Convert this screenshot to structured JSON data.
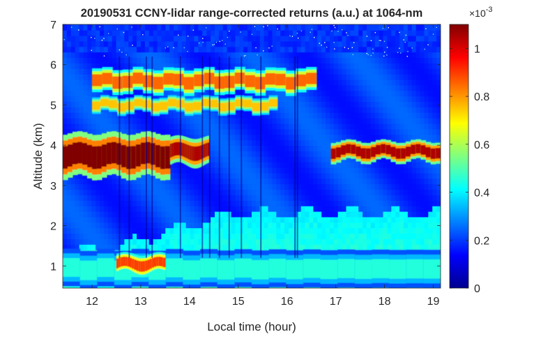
{
  "chart_data": {
    "type": "heatmap",
    "title": "20190531 CCNY-lidar range-corrected returns (a.u.) at 1064-nm",
    "xlabel": "Local time (hour)",
    "ylabel": "Altitude (km)",
    "xlim": [
      11.4,
      19.15
    ],
    "ylim": [
      0.45,
      7.0
    ],
    "x_ticks": [
      12,
      13,
      14,
      15,
      16,
      17,
      18,
      19
    ],
    "y_ticks": [
      1,
      2,
      3,
      4,
      5,
      6,
      7
    ],
    "colorbar": {
      "colormap": "jet",
      "clim": [
        0,
        1.1
      ],
      "ticks": [
        0,
        0.2,
        0.4,
        0.6,
        0.8,
        1
      ],
      "tick_labels": [
        "0",
        "0.2",
        "0.4",
        "0.6",
        "0.8",
        "1"
      ],
      "exponent_base": "×10",
      "exponent_power": "-3"
    },
    "features": [
      {
        "kind": "dense_layer",
        "t_start": 11.4,
        "t_end": 13.6,
        "alt_bottom": 3.2,
        "alt_top": 4.3,
        "value": 1.1
      },
      {
        "kind": "dense_layer",
        "t_start": 13.6,
        "t_end": 14.4,
        "alt_bottom": 3.5,
        "alt_top": 4.2,
        "value": 1.05
      },
      {
        "kind": "dense_layer",
        "t_start": 16.9,
        "t_end": 19.15,
        "alt_bottom": 3.6,
        "alt_top": 4.1,
        "value": 1.05
      },
      {
        "kind": "aerosol_layer",
        "t_start": 12.0,
        "t_end": 16.6,
        "alt_bottom": 5.3,
        "alt_top": 5.9,
        "value": 0.85
      },
      {
        "kind": "aerosol_layer",
        "t_start": 12.0,
        "t_end": 15.8,
        "alt_bottom": 4.8,
        "alt_top": 5.2,
        "value": 0.75
      },
      {
        "kind": "boundary_layer",
        "t_start": 11.4,
        "t_end": 19.15,
        "alt_bottom": 0.45,
        "alt_top": 1.4,
        "value": 0.45
      },
      {
        "kind": "boundary_top_patch",
        "t_start": 12.5,
        "t_end": 13.5,
        "alt_bottom": 0.8,
        "alt_top": 1.3,
        "value": 0.9
      }
    ]
  }
}
